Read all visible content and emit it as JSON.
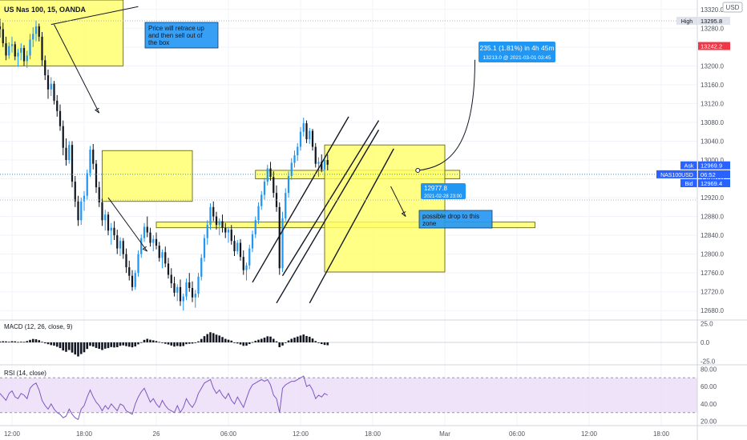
{
  "header": {
    "symbol": "US Nas 100, 15, OANDA",
    "currency": "USD"
  },
  "colors": {
    "up": "#2196f3",
    "down": "#131722",
    "zone_fill": "#ffff66",
    "zone_stroke": "#555500",
    "label_blue": "#2196f3",
    "price_red": "#f23645",
    "macd_bar": "#131722",
    "rsi_line": "#7e57c2",
    "rsi_band": "#e8d7f7",
    "grid": "#f0f3fa",
    "axis_text": "#50535e"
  },
  "chart_data": [
    {
      "type": "candlestick",
      "title": "",
      "ylim": [
        12660,
        13340
      ],
      "y_ticks": [
        13320,
        13280,
        13240,
        13200,
        13160,
        13120,
        13080,
        13040,
        13000,
        12960,
        12920,
        12880,
        12840,
        12800,
        12760,
        12720,
        12680
      ],
      "x_ticks": [
        {
          "label": "12:00",
          "t": 4
        },
        {
          "label": "18:00",
          "t": 28
        },
        {
          "label": "26",
          "t": 52
        },
        {
          "label": "06:00",
          "t": 76
        },
        {
          "label": "12:00",
          "t": 100
        },
        {
          "label": "18:00",
          "t": 124
        },
        {
          "label": "Mar",
          "t": 148
        },
        {
          "label": "06:00",
          "t": 172
        },
        {
          "label": "12:00",
          "t": 196
        },
        {
          "label": "18:00",
          "t": 220
        }
      ],
      "candles": [
        [
          13284,
          13300,
          13260,
          13278
        ],
        [
          13278,
          13292,
          13240,
          13248
        ],
        [
          13248,
          13262,
          13212,
          13222
        ],
        [
          13222,
          13250,
          13215,
          13242
        ],
        [
          13242,
          13262,
          13228,
          13246
        ],
        [
          13246,
          13252,
          13212,
          13220
        ],
        [
          13220,
          13236,
          13198,
          13228
        ],
        [
          13228,
          13248,
          13212,
          13238
        ],
        [
          13238,
          13244,
          13200,
          13210
        ],
        [
          13210,
          13232,
          13196,
          13222
        ],
        [
          13222,
          13268,
          13214,
          13256
        ],
        [
          13256,
          13282,
          13240,
          13268
        ],
        [
          13268,
          13296,
          13252,
          13284
        ],
        [
          13284,
          13290,
          13252,
          13262
        ],
        [
          13262,
          13272,
          13200,
          13212
        ],
        [
          13212,
          13222,
          13170,
          13180
        ],
        [
          13180,
          13192,
          13130,
          13150
        ],
        [
          13150,
          13176,
          13136,
          13162
        ],
        [
          13162,
          13168,
          13118,
          13126
        ],
        [
          13126,
          13138,
          13092,
          13104
        ],
        [
          13104,
          13118,
          13062,
          13072
        ],
        [
          13072,
          13084,
          13010,
          13026
        ],
        [
          13026,
          13046,
          12988,
          13000
        ],
        [
          13000,
          13040,
          12992,
          13032
        ],
        [
          13032,
          13040,
          12942,
          12954
        ],
        [
          12954,
          12966,
          12900,
          12912
        ],
        [
          12912,
          12924,
          12860,
          12872
        ],
        [
          12872,
          12920,
          12862,
          12912
        ],
        [
          12912,
          12934,
          12892,
          12924
        ],
        [
          12924,
          12980,
          12916,
          12972
        ],
        [
          12972,
          13030,
          12964,
          13022
        ],
        [
          13022,
          13034,
          12980,
          12992
        ],
        [
          12992,
          13000,
          12930,
          12942
        ],
        [
          12942,
          12954,
          12900,
          12910
        ],
        [
          12910,
          12918,
          12860,
          12872
        ],
        [
          12872,
          12894,
          12850,
          12884
        ],
        [
          12884,
          12890,
          12840,
          12850
        ],
        [
          12850,
          12866,
          12820,
          12856
        ],
        [
          12856,
          12870,
          12830,
          12840
        ],
        [
          12840,
          12852,
          12800,
          12812
        ],
        [
          12812,
          12836,
          12796,
          12828
        ],
        [
          12828,
          12834,
          12790,
          12800
        ],
        [
          12800,
          12812,
          12760,
          12772
        ],
        [
          12772,
          12786,
          12744,
          12754
        ],
        [
          12754,
          12766,
          12722,
          12730
        ],
        [
          12730,
          12766,
          12724,
          12760
        ],
        [
          12760,
          12808,
          12752,
          12800
        ],
        [
          12800,
          12842,
          12792,
          12834
        ],
        [
          12834,
          12866,
          12826,
          12858
        ],
        [
          12858,
          12880,
          12836,
          12846
        ],
        [
          12846,
          12856,
          12816,
          12824
        ],
        [
          12824,
          12840,
          12806,
          12832
        ],
        [
          12832,
          12846,
          12810,
          12818
        ],
        [
          12818,
          12826,
          12784,
          12792
        ],
        [
          12792,
          12810,
          12770,
          12804
        ],
        [
          12804,
          12816,
          12772,
          12780
        ],
        [
          12780,
          12792,
          12748,
          12756
        ],
        [
          12756,
          12770,
          12728,
          12738
        ],
        [
          12738,
          12752,
          12710,
          12718
        ],
        [
          12718,
          12736,
          12700,
          12730
        ],
        [
          12730,
          12746,
          12690,
          12700
        ],
        [
          12700,
          12716,
          12680,
          12710
        ],
        [
          12710,
          12748,
          12702,
          12740
        ],
        [
          12740,
          12760,
          12720,
          12728
        ],
        [
          12728,
          12742,
          12698,
          12708
        ],
        [
          12708,
          12724,
          12686,
          12716
        ],
        [
          12716,
          12760,
          12708,
          12752
        ],
        [
          12752,
          12800,
          12744,
          12792
        ],
        [
          12792,
          12842,
          12784,
          12834
        ],
        [
          12834,
          12872,
          12820,
          12862
        ],
        [
          12862,
          12908,
          12852,
          12900
        ],
        [
          12900,
          12912,
          12870,
          12880
        ],
        [
          12880,
          12890,
          12852,
          12862
        ],
        [
          12862,
          12876,
          12840,
          12870
        ],
        [
          12870,
          12884,
          12846,
          12856
        ],
        [
          12856,
          12866,
          12834,
          12846
        ],
        [
          12846,
          12858,
          12824,
          12852
        ],
        [
          12852,
          12862,
          12820,
          12828
        ],
        [
          12828,
          12840,
          12796,
          12806
        ],
        [
          12806,
          12830,
          12800,
          12824
        ],
        [
          12824,
          12832,
          12786,
          12794
        ],
        [
          12794,
          12808,
          12756,
          12766
        ],
        [
          12766,
          12782,
          12744,
          12776
        ],
        [
          12776,
          12820,
          12768,
          12812
        ],
        [
          12812,
          12850,
          12804,
          12842
        ],
        [
          12842,
          12880,
          12834,
          12872
        ],
        [
          12872,
          12910,
          12864,
          12902
        ],
        [
          12902,
          12934,
          12894,
          12926
        ],
        [
          12926,
          12962,
          12916,
          12954
        ],
        [
          12954,
          12990,
          12946,
          12982
        ],
        [
          12982,
          12996,
          12956,
          12964
        ],
        [
          12964,
          12976,
          12920,
          12930
        ],
        [
          12930,
          12946,
          12890,
          12900
        ],
        [
          12900,
          12910,
          12756,
          12770
        ],
        [
          12770,
          12890,
          12762,
          12876
        ],
        [
          12876,
          12940,
          12870,
          12930
        ],
        [
          12930,
          12976,
          12920,
          12966
        ],
        [
          12966,
          13004,
          12958,
          12994
        ],
        [
          12994,
          13020,
          12984,
          13010
        ],
        [
          13010,
          13036,
          12998,
          13028
        ],
        [
          13028,
          13070,
          13020,
          13060
        ],
        [
          13060,
          13090,
          13050,
          13078
        ],
        [
          13078,
          13084,
          13036,
          13044
        ],
        [
          13044,
          13068,
          13034,
          13062
        ],
        [
          13062,
          13066,
          13020,
          13028
        ],
        [
          13028,
          13036,
          12984,
          12992
        ],
        [
          12992,
          13006,
          12964,
          12996
        ],
        [
          12996,
          13012,
          12974,
          12980
        ],
        [
          12980,
          13008,
          12972,
          13000
        ],
        [
          13000,
          13012,
          12978,
          12990
        ]
      ],
      "x_range": [
        0,
        232
      ]
    },
    {
      "type": "bar",
      "title": "MACD (12, 26, close, 9)",
      "ylim": [
        -30,
        30
      ],
      "y_ticks": [
        25.0,
        0.0,
        -25.0
      ],
      "values": [
        1.2,
        1.5,
        1.4,
        0.8,
        1.6,
        1.4,
        0.6,
        0.9,
        0.7,
        1.8,
        3.4,
        4.6,
        4.2,
        3.0,
        0.8,
        -1.2,
        -2.4,
        -3.6,
        -4.4,
        -5.8,
        -7.6,
        -10.8,
        -12.6,
        -10.2,
        -13.6,
        -16.2,
        -18.8,
        -15.6,
        -13.2,
        -8.8,
        -4.6,
        -5.6,
        -7.4,
        -8.6,
        -10.2,
        -8.4,
        -7.6,
        -6.2,
        -6.8,
        -6.4,
        -4.6,
        -4.0,
        -5.0,
        -5.8,
        -6.6,
        -5.4,
        -2.6,
        0.2,
        3.4,
        4.8,
        3.6,
        2.8,
        1.8,
        0.6,
        -0.6,
        -1.8,
        -2.8,
        -4.2,
        -5.6,
        -4.8,
        -5.4,
        -4.8,
        -2.4,
        -1.8,
        -1.6,
        -0.8,
        1.4,
        4.6,
        8.4,
        11.2,
        13.6,
        12.4,
        10.4,
        9.2,
        7.2,
        4.8,
        3.6,
        2.4,
        -0.2,
        -1.4,
        -2.8,
        -4.6,
        -4.4,
        -2.2,
        0.4,
        2.2,
        3.6,
        4.8,
        6.4,
        8.2,
        7.8,
        4.8,
        1.4,
        -6.4,
        -4.2,
        -0.4,
        2.6,
        4.8,
        6.4,
        7.8,
        9.2,
        10.6,
        8.6,
        7.6,
        5.2,
        1.8,
        -0.4,
        -2.2,
        -3.4,
        -3.8
      ]
    },
    {
      "type": "line",
      "title": "RSI (14, close)",
      "ylim": [
        15,
        85
      ],
      "y_ticks": [
        80.0,
        60.0,
        40.0,
        20.0
      ],
      "band": [
        30,
        70
      ],
      "values": [
        52,
        48,
        44,
        52,
        55,
        48,
        46,
        52,
        50,
        46,
        58,
        62,
        64,
        56,
        44,
        38,
        34,
        40,
        34,
        30,
        28,
        24,
        26,
        34,
        28,
        24,
        22,
        34,
        38,
        48,
        56,
        48,
        42,
        38,
        32,
        38,
        34,
        40,
        36,
        32,
        40,
        38,
        32,
        30,
        28,
        40,
        48,
        54,
        58,
        50,
        42,
        46,
        40,
        36,
        44,
        38,
        34,
        32,
        30,
        38,
        30,
        36,
        46,
        40,
        36,
        42,
        52,
        58,
        64,
        66,
        68,
        58,
        52,
        56,
        50,
        46,
        52,
        44,
        40,
        48,
        42,
        36,
        46,
        56,
        62,
        64,
        66,
        68,
        66,
        68,
        62,
        50,
        46,
        30,
        58,
        62,
        64,
        66,
        66,
        68,
        70,
        72,
        60,
        62,
        56,
        46,
        50,
        48,
        52,
        50
      ]
    }
  ],
  "annotations": {
    "note_retrace": "Price will retrace up and then sell out of the box",
    "note_drop": "possible drop to this zone",
    "projection_label": "235.1 (1.81%) in 4h 45m",
    "projection_sub": "13213.0 @ 2021-03-01  03:45",
    "cursor_price": "12977.8",
    "cursor_date": "2021-02-28 23:00"
  },
  "price_scale": {
    "high_label": "High",
    "high_value": "13295.8",
    "high_level": 13295.8,
    "current_value": "13242.2",
    "current_level": 13242.2,
    "ask_label": "Ask",
    "ask_value": "12969.9",
    "ask_level": 12969.9,
    "symbol_label": "NAS100USD",
    "countdown": "06:52",
    "mid_level": 12969.6,
    "bid_label": "Bid",
    "bid_value": "12969.4",
    "bid_level": 12969.4,
    "dotted_level": 12915
  }
}
